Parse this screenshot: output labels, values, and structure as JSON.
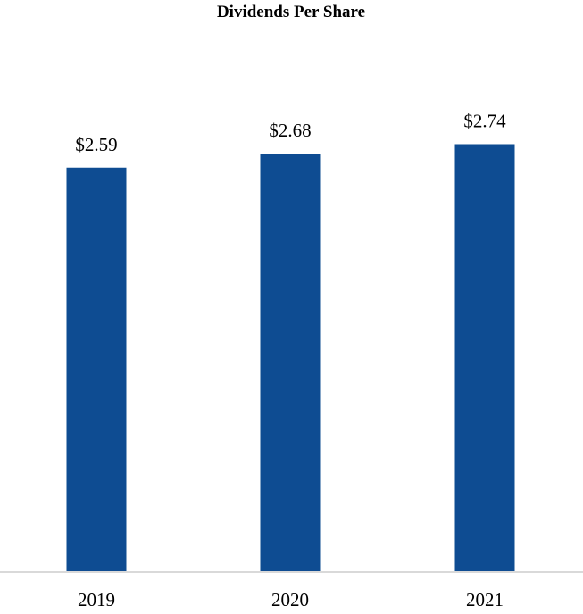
{
  "chart_data": {
    "type": "bar",
    "title": "Dividends Per Share",
    "categories": [
      "2019",
      "2020",
      "2021"
    ],
    "values": [
      2.59,
      2.68,
      2.74
    ],
    "value_labels": [
      "$2.59",
      "$2.68",
      "$2.74"
    ],
    "xlabel": "",
    "ylabel": "",
    "ylim": [
      0,
      2.85
    ],
    "grid": false,
    "legend": "none",
    "bar_color": "#0e4c92",
    "axis_color": "#d9d9d9"
  }
}
